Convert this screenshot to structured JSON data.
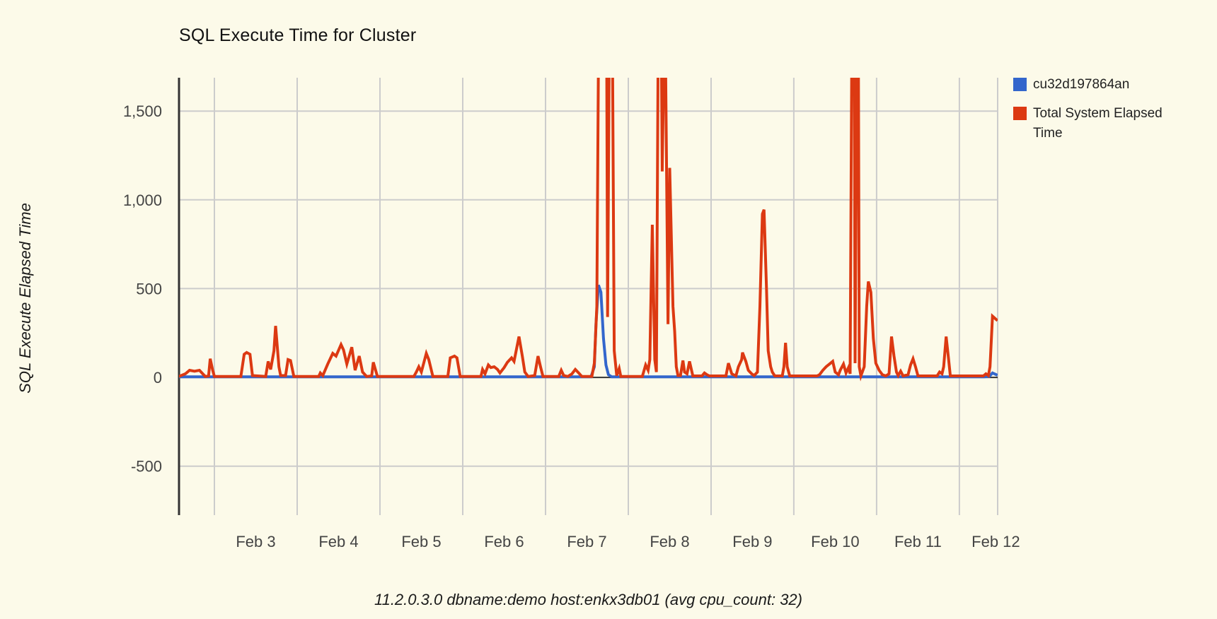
{
  "chart_data": {
    "type": "line",
    "title": "SQL Execute Time for Cluster",
    "ylabel": "SQL Execute Elapsed Time",
    "footer": "11.2.0.3.0 dbname:demo host:enkx3db01 (avg cpu_count: 32)",
    "legend_position": "right",
    "grid_on": true,
    "xlim": [
      2.573,
      12.462
    ],
    "ylim": [
      -776,
      1688
    ],
    "grid_days": [
      3,
      4,
      5,
      6,
      7,
      8,
      9,
      10,
      11,
      12
    ],
    "x_ticks": [
      {
        "label": "Feb 3",
        "day": 3.5
      },
      {
        "label": "Feb 4",
        "day": 4.5
      },
      {
        "label": "Feb 5",
        "day": 5.5
      },
      {
        "label": "Feb 6",
        "day": 6.5
      },
      {
        "label": "Feb 7",
        "day": 7.5
      },
      {
        "label": "Feb 8",
        "day": 8.5
      },
      {
        "label": "Feb 9",
        "day": 9.5
      },
      {
        "label": "Feb 10",
        "day": 10.5
      },
      {
        "label": "Feb 11",
        "day": 11.5
      },
      {
        "label": "Feb 12",
        "day": 12.44
      }
    ],
    "y_ticks": [
      {
        "label": "1,500",
        "value": 1500
      },
      {
        "label": "1,000",
        "value": 1000
      },
      {
        "label": "500",
        "value": 500
      },
      {
        "label": "0",
        "value": 0
      },
      {
        "label": "-500",
        "value": -500
      }
    ],
    "colors": {
      "background": "#FCFAE9",
      "grid": "#CCCCCC",
      "axis": "#333333",
      "tick_label": "#444444",
      "title_text": "#111111",
      "legend_text": "#222222"
    },
    "series": [
      {
        "name": "cu32d197864an",
        "color": "#3366CC",
        "points": [
          [
            2.57,
            3
          ],
          [
            7.55,
            3
          ],
          [
            7.59,
            60
          ],
          [
            7.61,
            300
          ],
          [
            7.64,
            520
          ],
          [
            7.67,
            480
          ],
          [
            7.7,
            220
          ],
          [
            7.73,
            70
          ],
          [
            7.76,
            15
          ],
          [
            7.8,
            3
          ],
          [
            12.3,
            3
          ],
          [
            12.36,
            5
          ],
          [
            12.4,
            25
          ],
          [
            12.46,
            12
          ]
        ]
      },
      {
        "name": "Total System Elapsed Time",
        "color": "#DC3912",
        "points": [
          [
            2.57,
            5
          ],
          [
            2.65,
            20
          ],
          [
            2.7,
            40
          ],
          [
            2.76,
            35
          ],
          [
            2.82,
            40
          ],
          [
            2.89,
            5
          ],
          [
            2.93,
            8
          ],
          [
            2.95,
            105
          ],
          [
            2.98,
            40
          ],
          [
            3.0,
            5
          ],
          [
            3.32,
            5
          ],
          [
            3.36,
            130
          ],
          [
            3.39,
            140
          ],
          [
            3.43,
            130
          ],
          [
            3.46,
            10
          ],
          [
            3.62,
            5
          ],
          [
            3.65,
            90
          ],
          [
            3.68,
            45
          ],
          [
            3.72,
            150
          ],
          [
            3.74,
            290
          ],
          [
            3.78,
            60
          ],
          [
            3.8,
            10
          ],
          [
            3.86,
            10
          ],
          [
            3.89,
            100
          ],
          [
            3.92,
            95
          ],
          [
            3.96,
            5
          ],
          [
            4.26,
            5
          ],
          [
            4.28,
            25
          ],
          [
            4.31,
            10
          ],
          [
            4.37,
            75
          ],
          [
            4.43,
            135
          ],
          [
            4.47,
            120
          ],
          [
            4.53,
            185
          ],
          [
            4.56,
            155
          ],
          [
            4.6,
            75
          ],
          [
            4.66,
            170
          ],
          [
            4.7,
            40
          ],
          [
            4.75,
            120
          ],
          [
            4.79,
            30
          ],
          [
            4.84,
            5
          ],
          [
            4.9,
            8
          ],
          [
            4.92,
            85
          ],
          [
            4.97,
            5
          ],
          [
            5.41,
            5
          ],
          [
            5.44,
            30
          ],
          [
            5.47,
            60
          ],
          [
            5.5,
            30
          ],
          [
            5.56,
            135
          ],
          [
            5.59,
            100
          ],
          [
            5.64,
            5
          ],
          [
            5.82,
            5
          ],
          [
            5.85,
            110
          ],
          [
            5.9,
            120
          ],
          [
            5.93,
            110
          ],
          [
            5.97,
            5
          ],
          [
            6.22,
            5
          ],
          [
            6.24,
            45
          ],
          [
            6.27,
            20
          ],
          [
            6.31,
            70
          ],
          [
            6.34,
            55
          ],
          [
            6.38,
            60
          ],
          [
            6.42,
            45
          ],
          [
            6.45,
            25
          ],
          [
            6.5,
            55
          ],
          [
            6.54,
            85
          ],
          [
            6.59,
            110
          ],
          [
            6.62,
            90
          ],
          [
            6.68,
            230
          ],
          [
            6.72,
            120
          ],
          [
            6.75,
            30
          ],
          [
            6.79,
            5
          ],
          [
            6.87,
            10
          ],
          [
            6.91,
            120
          ],
          [
            6.94,
            60
          ],
          [
            6.97,
            5
          ],
          [
            7.16,
            5
          ],
          [
            7.19,
            40
          ],
          [
            7.22,
            10
          ],
          [
            7.27,
            5
          ],
          [
            7.32,
            20
          ],
          [
            7.36,
            45
          ],
          [
            7.4,
            25
          ],
          [
            7.44,
            5
          ],
          [
            7.56,
            5
          ],
          [
            7.59,
            80
          ],
          [
            7.62,
            400
          ],
          [
            7.64,
            1800
          ],
          [
            7.74,
            1800
          ],
          [
            7.75,
            340
          ],
          [
            7.77,
            1800
          ],
          [
            7.81,
            1800
          ],
          [
            7.83,
            150
          ],
          [
            7.86,
            10
          ],
          [
            7.89,
            50
          ],
          [
            7.91,
            5
          ],
          [
            8.17,
            5
          ],
          [
            8.21,
            70
          ],
          [
            8.24,
            40
          ],
          [
            8.26,
            100
          ],
          [
            8.29,
            860
          ],
          [
            8.32,
            100
          ],
          [
            8.34,
            30
          ],
          [
            8.36,
            1800
          ],
          [
            8.4,
            1800
          ],
          [
            8.41,
            1160
          ],
          [
            8.43,
            1800
          ],
          [
            8.45,
            1800
          ],
          [
            8.48,
            300
          ],
          [
            8.5,
            1180
          ],
          [
            8.54,
            400
          ],
          [
            8.56,
            260
          ],
          [
            8.58,
            60
          ],
          [
            8.6,
            10
          ],
          [
            8.63,
            10
          ],
          [
            8.66,
            95
          ],
          [
            8.68,
            30
          ],
          [
            8.71,
            20
          ],
          [
            8.74,
            90
          ],
          [
            8.78,
            8
          ],
          [
            8.89,
            8
          ],
          [
            8.92,
            25
          ],
          [
            8.95,
            15
          ],
          [
            8.98,
            8
          ],
          [
            9.18,
            8
          ],
          [
            9.21,
            80
          ],
          [
            9.25,
            20
          ],
          [
            9.3,
            8
          ],
          [
            9.33,
            60
          ],
          [
            9.37,
            100
          ],
          [
            9.38,
            140
          ],
          [
            9.42,
            90
          ],
          [
            9.45,
            40
          ],
          [
            9.49,
            20
          ],
          [
            9.52,
            10
          ],
          [
            9.56,
            30
          ],
          [
            9.59,
            400
          ],
          [
            9.62,
            920
          ],
          [
            9.64,
            945
          ],
          [
            9.67,
            500
          ],
          [
            9.69,
            150
          ],
          [
            9.72,
            60
          ],
          [
            9.74,
            30
          ],
          [
            9.77,
            8
          ],
          [
            9.86,
            8
          ],
          [
            9.88,
            60
          ],
          [
            9.9,
            195
          ],
          [
            9.92,
            60
          ],
          [
            9.95,
            8
          ],
          [
            10.28,
            8
          ],
          [
            10.31,
            15
          ],
          [
            10.35,
            40
          ],
          [
            10.39,
            60
          ],
          [
            10.43,
            75
          ],
          [
            10.47,
            90
          ],
          [
            10.5,
            30
          ],
          [
            10.54,
            15
          ],
          [
            10.56,
            40
          ],
          [
            10.6,
            75
          ],
          [
            10.63,
            25
          ],
          [
            10.66,
            55
          ],
          [
            10.68,
            20
          ],
          [
            10.7,
            1800
          ],
          [
            10.73,
            1800
          ],
          [
            10.74,
            80
          ],
          [
            10.76,
            1800
          ],
          [
            10.78,
            1800
          ],
          [
            10.79,
            60
          ],
          [
            10.81,
            8
          ],
          [
            10.85,
            60
          ],
          [
            10.88,
            400
          ],
          [
            10.9,
            540
          ],
          [
            10.93,
            480
          ],
          [
            10.96,
            220
          ],
          [
            10.99,
            80
          ],
          [
            11.03,
            40
          ],
          [
            11.07,
            15
          ],
          [
            11.11,
            8
          ],
          [
            11.15,
            20
          ],
          [
            11.18,
            230
          ],
          [
            11.21,
            120
          ],
          [
            11.24,
            30
          ],
          [
            11.26,
            10
          ],
          [
            11.29,
            35
          ],
          [
            11.32,
            8
          ],
          [
            11.38,
            15
          ],
          [
            11.41,
            70
          ],
          [
            11.44,
            105
          ],
          [
            11.47,
            60
          ],
          [
            11.5,
            8
          ],
          [
            11.73,
            8
          ],
          [
            11.76,
            30
          ],
          [
            11.79,
            20
          ],
          [
            11.81,
            60
          ],
          [
            11.84,
            230
          ],
          [
            11.87,
            100
          ],
          [
            11.89,
            8
          ],
          [
            12.29,
            8
          ],
          [
            12.32,
            20
          ],
          [
            12.35,
            10
          ],
          [
            12.37,
            60
          ],
          [
            12.4,
            345
          ],
          [
            12.46,
            320
          ]
        ]
      }
    ]
  }
}
